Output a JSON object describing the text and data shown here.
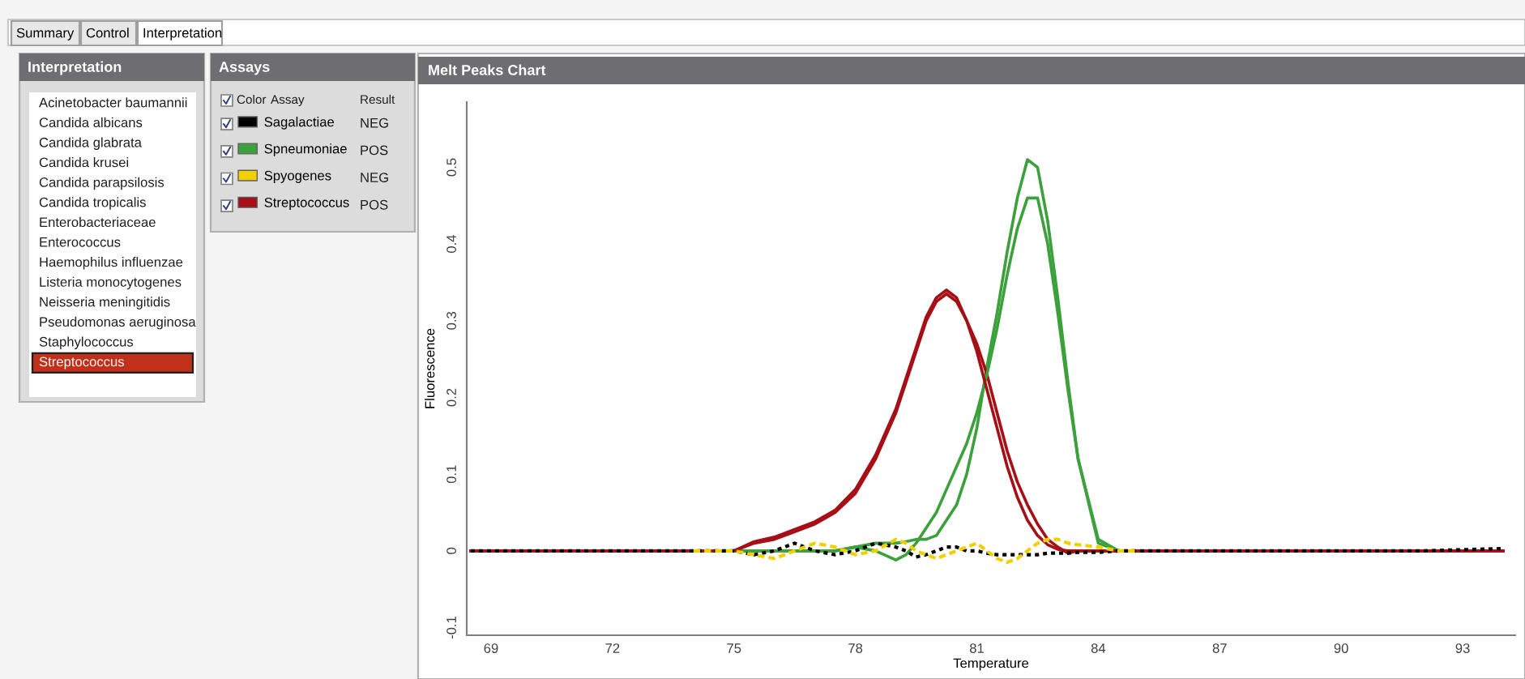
{
  "chart_data": {
    "type": "line",
    "title": "Melt Peaks Chart",
    "xlabel": "Temperature",
    "ylabel": "Fluorescence",
    "xlim": [
      68.4,
      94.3
    ],
    "ylim": [
      -0.11,
      0.585
    ],
    "xticks": [
      69,
      72,
      75,
      78,
      81,
      84,
      87,
      90,
      93
    ],
    "yticks": [
      {
        "value": -0.1,
        "label": "-0.1"
      },
      {
        "value": 0,
        "label": "0"
      },
      {
        "value": 0.1,
        "label": "0.1"
      },
      {
        "value": 0.2,
        "label": "0.2"
      },
      {
        "value": 0.3,
        "label": "0.3"
      },
      {
        "value": 0.4,
        "label": "0.4"
      },
      {
        "value": 0.5,
        "label": "0.5"
      }
    ],
    "grid": false,
    "legend": "left",
    "marker": "none",
    "x": [
      68.5,
      70,
      72,
      74,
      75,
      75.5,
      76,
      76.5,
      77,
      77.5,
      78,
      78.5,
      79,
      79.25,
      79.5,
      79.75,
      80,
      80.25,
      80.5,
      80.75,
      81,
      81.25,
      81.5,
      81.75,
      82,
      82.25,
      82.5,
      82.75,
      83,
      83.25,
      83.5,
      84,
      84.5,
      85,
      86,
      88,
      90,
      92,
      94
    ],
    "series": [
      {
        "name": "Sagalactiae",
        "color": "#000000",
        "line_style": "dotted",
        "values": [
          0,
          0,
          0,
          0,
          0,
          -0.005,
          0,
          0.01,
          0,
          -0.005,
          0,
          0.01,
          0.005,
          0,
          -0.008,
          -0.005,
          0,
          0.005,
          0.005,
          0,
          0,
          -0.003,
          -0.005,
          -0.005,
          -0.005,
          -0.005,
          -0.005,
          -0.003,
          -0.003,
          -0.003,
          -0.002,
          -0.002,
          0,
          0,
          0,
          0,
          0,
          0,
          0.003
        ]
      },
      {
        "name": "Spneumoniae",
        "color": "#3ca03c",
        "line_style": "solid",
        "values": [
          null,
          null,
          null,
          0,
          0,
          0,
          0,
          0,
          0,
          0,
          0.005,
          0.01,
          0.01,
          0.012,
          0.015,
          0.015,
          0.02,
          0.04,
          0.06,
          0.1,
          0.16,
          0.24,
          0.31,
          0.39,
          0.46,
          0.51,
          0.5,
          0.43,
          0.33,
          0.22,
          0.12,
          0.01,
          0,
          0,
          null,
          null,
          null,
          null,
          null
        ]
      },
      {
        "name": "Spyogenes",
        "color": "#f0d000",
        "line_style": "dashed",
        "values": [
          null,
          null,
          null,
          0,
          0,
          -0.005,
          -0.01,
          0,
          0.01,
          0.005,
          -0.005,
          0,
          0.015,
          0.01,
          0,
          -0.005,
          -0.01,
          -0.005,
          0,
          0.005,
          0.01,
          0,
          -0.01,
          -0.015,
          -0.01,
          0,
          0.01,
          0.015,
          0.015,
          0.01,
          0.008,
          0.005,
          0,
          0,
          null,
          null,
          null,
          null,
          null
        ]
      },
      {
        "name": "Streptococcus",
        "color": "#a50f15",
        "line_style": "solid",
        "values": [
          0,
          0,
          0,
          0,
          0,
          0.01,
          0.015,
          0.025,
          0.035,
          0.05,
          0.075,
          0.12,
          0.18,
          0.22,
          0.26,
          0.3,
          0.325,
          0.335,
          0.325,
          0.3,
          0.27,
          0.23,
          0.18,
          0.13,
          0.09,
          0.06,
          0.035,
          0.015,
          0.005,
          -0.003,
          0,
          0,
          0,
          0,
          0,
          0,
          0,
          0,
          0
        ]
      },
      {
        "color": "#3ca03c",
        "line_style": "solid",
        "values": [
          null,
          null,
          null,
          0,
          0,
          0,
          0,
          0,
          0,
          0,
          0.005,
          0,
          -0.012,
          -0.005,
          0.01,
          0.03,
          0.05,
          0.08,
          0.11,
          0.14,
          0.18,
          0.23,
          0.29,
          0.36,
          0.42,
          0.46,
          0.46,
          0.4,
          0.31,
          0.21,
          0.12,
          0.015,
          0,
          0,
          null,
          null,
          null,
          null,
          null
        ]
      },
      {
        "color": "#a50f15",
        "line_style": "solid",
        "values": [
          0,
          0,
          0,
          0,
          0,
          0.012,
          0.018,
          0.028,
          0.038,
          0.053,
          0.08,
          0.125,
          0.185,
          0.225,
          0.265,
          0.305,
          0.33,
          0.34,
          0.33,
          0.3,
          0.26,
          0.21,
          0.16,
          0.11,
          0.07,
          0.04,
          0.02,
          0.008,
          0.002,
          0,
          0,
          0,
          0,
          0,
          0,
          0,
          0,
          0,
          0
        ]
      }
    ],
    "annotations": [
      "Summary",
      "Control",
      "Interpretation",
      "Interpretation",
      "Acinetobacter baumannii",
      "Candida albicans",
      "Candida glabrata",
      "Candida krusei",
      "Candida parapsilosis",
      "Candida tropicalis",
      "Enterobacteriaceae",
      "Enterococcus",
      "Haemophilus influenzae",
      "Listeria monocytogenes",
      "Neisseria meningitidis",
      "Pseudomonas aeruginosa",
      "Staphylococcus",
      "Streptococcus",
      "Assays",
      "Assay",
      "Result",
      "Color",
      "NEG",
      "POS",
      "NEG",
      "POS"
    ]
  }
}
